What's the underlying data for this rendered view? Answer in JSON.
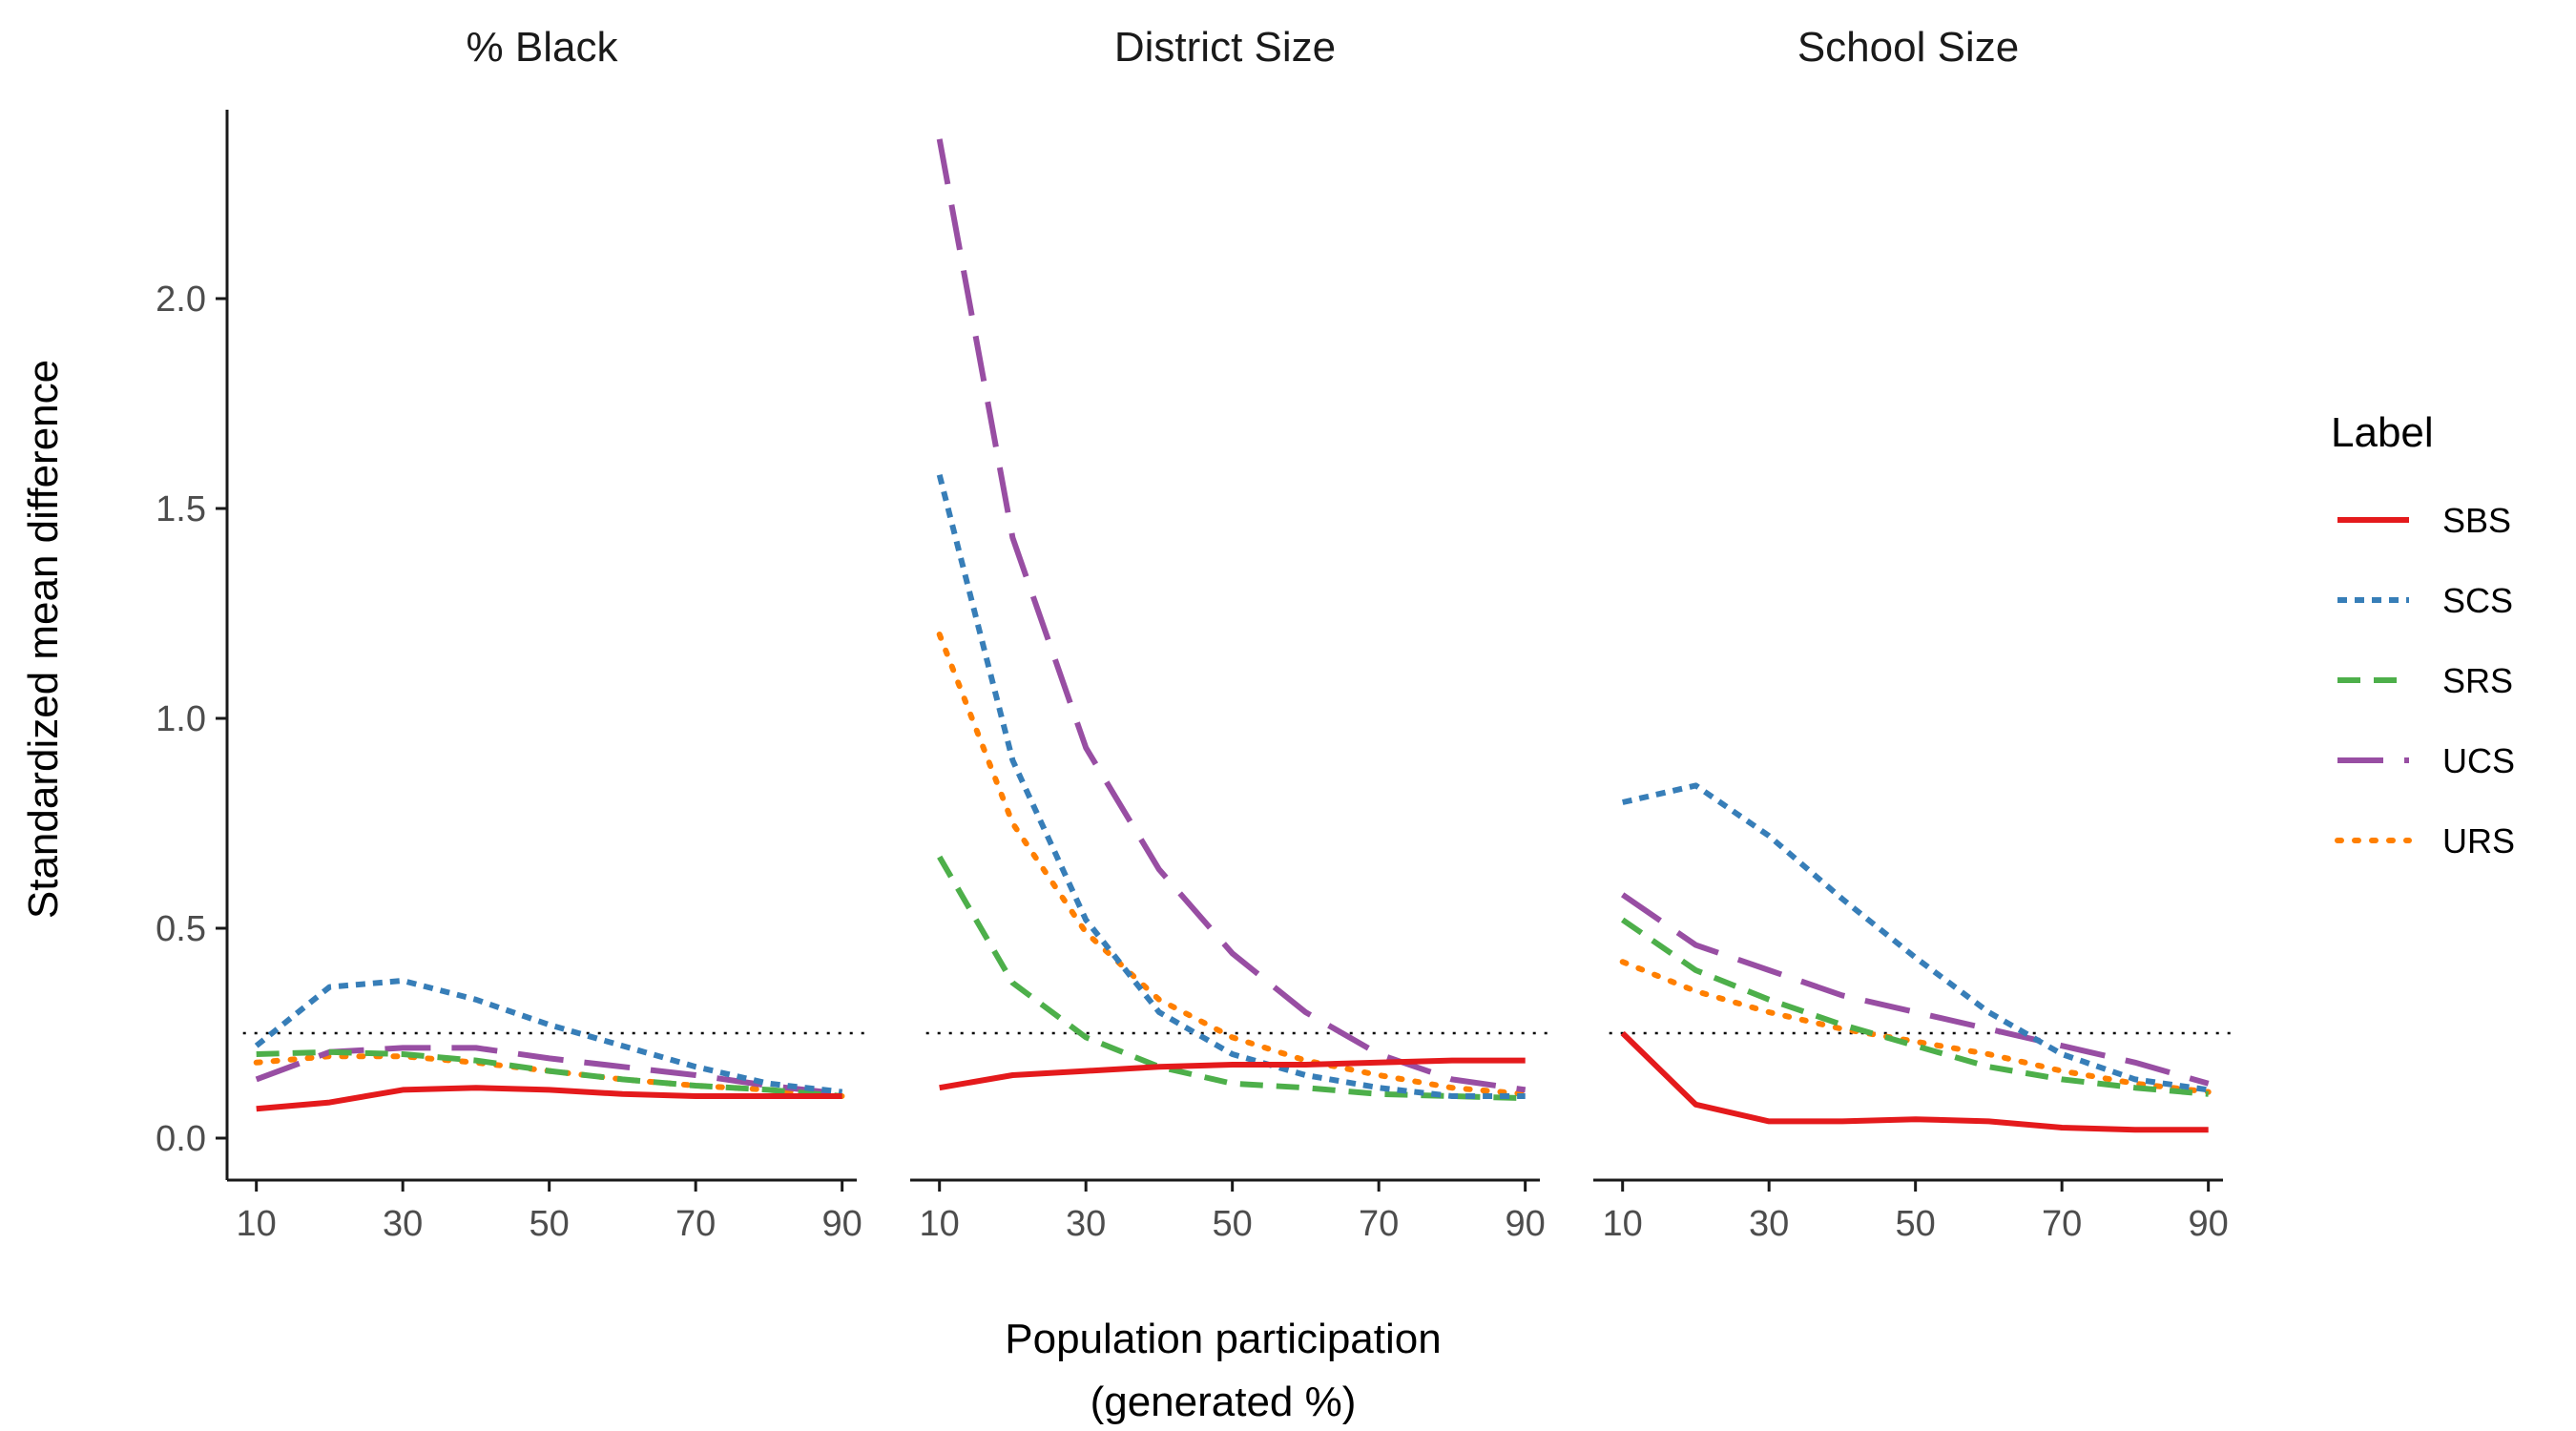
{
  "chart_data": {
    "type": "line",
    "facets": [
      "% Black",
      "District Size",
      "School Size"
    ],
    "xlabel": "Population participation",
    "xlabel_line2": "(generated %)",
    "ylabel": "Standardized mean difference",
    "x": [
      10,
      20,
      30,
      40,
      50,
      60,
      70,
      80,
      90
    ],
    "x_ticks": [
      10,
      30,
      50,
      70,
      90
    ],
    "x_tick_labels": [
      "10",
      "30",
      "50",
      "70",
      "90"
    ],
    "xlim": [
      6,
      92
    ],
    "y_ticks": [
      0,
      0.5,
      1,
      1.5,
      2
    ],
    "y_tick_labels": [
      "0.0",
      "0.5",
      "1.0",
      "1.5",
      "2.0"
    ],
    "ylim": [
      -0.1,
      2.45
    ],
    "reference_line": 0.25,
    "grid": false,
    "legend": {
      "title": "Label",
      "position": "right",
      "entries": [
        {
          "name": "SBS",
          "color": "#e41a1c",
          "dash": "solid"
        },
        {
          "name": "SCS",
          "color": "#377eb8",
          "dash": "short-dash"
        },
        {
          "name": "SRS",
          "color": "#4daf4a",
          "dash": "dash"
        },
        {
          "name": "UCS",
          "color": "#984ea3",
          "dash": "long-dash"
        },
        {
          "name": "URS",
          "color": "#ff7f00",
          "dash": "dotted"
        }
      ]
    },
    "panels": [
      {
        "facet": "% Black",
        "series": [
          {
            "name": "SBS",
            "values": [
              0.07,
              0.085,
              0.115,
              0.12,
              0.115,
              0.105,
              0.1,
              0.1,
              0.1
            ]
          },
          {
            "name": "SCS",
            "values": [
              0.22,
              0.36,
              0.375,
              0.33,
              0.27,
              0.22,
              0.17,
              0.13,
              0.11
            ]
          },
          {
            "name": "SRS",
            "values": [
              0.2,
              0.205,
              0.2,
              0.185,
              0.16,
              0.14,
              0.125,
              0.115,
              0.1
            ]
          },
          {
            "name": "UCS",
            "values": [
              0.14,
              0.205,
              0.215,
              0.215,
              0.19,
              0.17,
              0.15,
              0.125,
              0.105
            ]
          },
          {
            "name": "URS",
            "values": [
              0.18,
              0.195,
              0.195,
              0.18,
              0.16,
              0.14,
              0.125,
              0.115,
              0.1
            ]
          }
        ]
      },
      {
        "facet": "District Size",
        "series": [
          {
            "name": "SBS",
            "values": [
              0.12,
              0.15,
              0.16,
              0.17,
              0.175,
              0.175,
              0.18,
              0.185,
              0.185
            ]
          },
          {
            "name": "SCS",
            "values": [
              1.58,
              0.9,
              0.52,
              0.3,
              0.2,
              0.15,
              0.12,
              0.1,
              0.1
            ]
          },
          {
            "name": "SRS",
            "values": [
              0.67,
              0.37,
              0.24,
              0.17,
              0.13,
              0.12,
              0.105,
              0.1,
              0.095
            ]
          },
          {
            "name": "UCS",
            "values": [
              2.38,
              1.43,
              0.93,
              0.64,
              0.44,
              0.3,
              0.2,
              0.14,
              0.115
            ]
          },
          {
            "name": "URS",
            "values": [
              1.2,
              0.75,
              0.49,
              0.33,
              0.24,
              0.185,
              0.15,
              0.12,
              0.105
            ]
          }
        ]
      },
      {
        "facet": "School Size",
        "series": [
          {
            "name": "SBS",
            "values": [
              0.25,
              0.08,
              0.04,
              0.04,
              0.045,
              0.04,
              0.025,
              0.02,
              0.02
            ]
          },
          {
            "name": "SCS",
            "values": [
              0.8,
              0.84,
              0.72,
              0.57,
              0.43,
              0.3,
              0.2,
              0.14,
              0.115
            ]
          },
          {
            "name": "SRS",
            "values": [
              0.52,
              0.4,
              0.33,
              0.27,
              0.22,
              0.17,
              0.14,
              0.12,
              0.105
            ]
          },
          {
            "name": "UCS",
            "values": [
              0.58,
              0.46,
              0.4,
              0.34,
              0.3,
              0.26,
              0.22,
              0.18,
              0.13
            ]
          },
          {
            "name": "URS",
            "values": [
              0.42,
              0.35,
              0.3,
              0.26,
              0.23,
              0.2,
              0.16,
              0.13,
              0.11
            ]
          }
        ]
      }
    ]
  }
}
